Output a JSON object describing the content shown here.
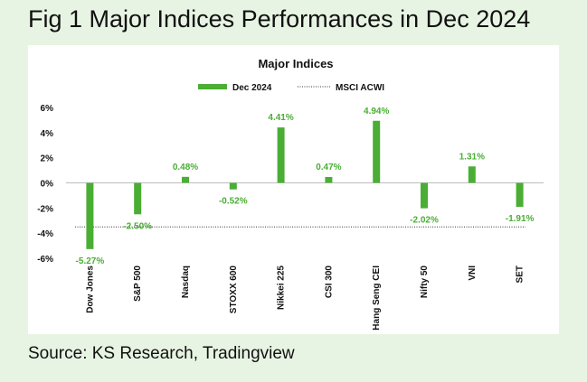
{
  "figure": {
    "title": "Fig 1 Major Indices Performances in Dec 2024",
    "source": "Source: KS Research, Tradingview"
  },
  "chart_data": {
    "type": "bar",
    "title": "Major Indices",
    "categories": [
      "Dow Jones",
      "S&P 500",
      "Nasdaq",
      "STOXX 600",
      "Nikkei 225",
      "CSI 300",
      "Hang Seng CEI",
      "Nifty 50",
      "VNI",
      "SET"
    ],
    "series": [
      {
        "name": "Dec 2024",
        "values": [
          -5.27,
          -2.5,
          0.48,
          -0.52,
          4.41,
          0.47,
          4.94,
          -2.02,
          1.31,
          -1.91
        ],
        "color": "#4aae34"
      }
    ],
    "value_labels": [
      "-5.27%",
      "-2.50%",
      "0.48%",
      "-0.52%",
      "4.41%",
      "0.47%",
      "4.94%",
      "-2.02%",
      "1.31%",
      "-1.91%"
    ],
    "reference_line": {
      "name": "MSCI ACWI",
      "value": -3.5,
      "style": "dotted"
    },
    "ylim": [
      -6,
      6
    ],
    "yticks": [
      6,
      4,
      2,
      0,
      -2,
      -4,
      -6
    ],
    "ytick_labels": [
      "6%",
      "4%",
      "2%",
      "0%",
      "-2%",
      "-4%",
      "-6%"
    ],
    "legend_position": "top-center",
    "grid": false,
    "label_color": "#4aae34"
  }
}
